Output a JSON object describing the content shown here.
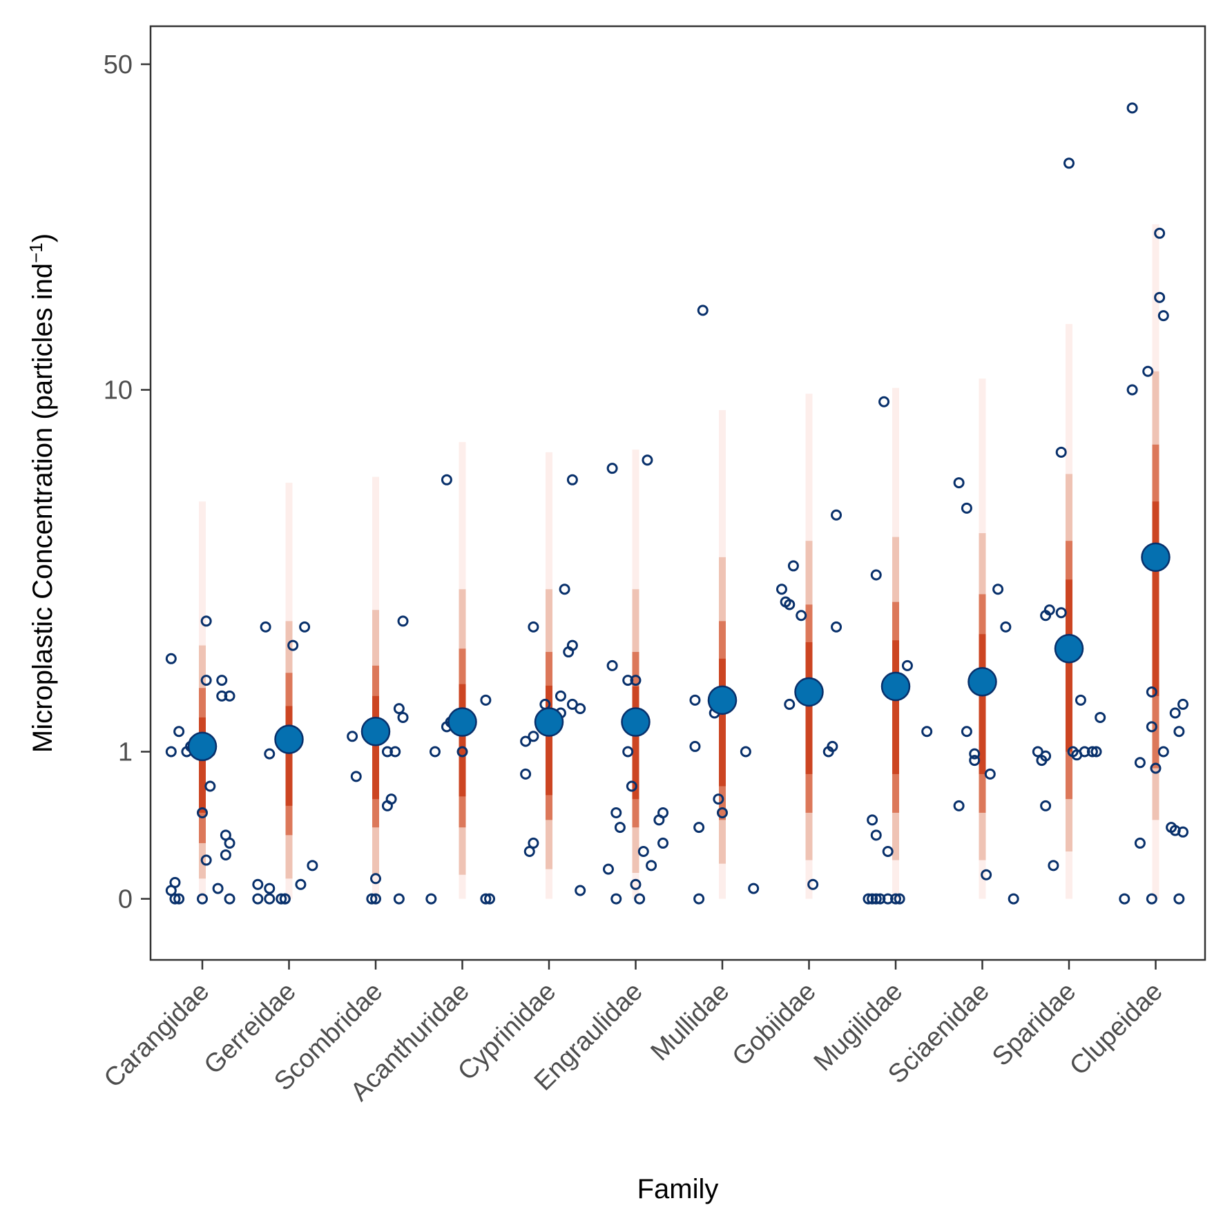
{
  "chart_data": {
    "type": "scatter",
    "xlabel": "Family",
    "ylabel": {
      "prefix": "Microplastic Concentration (particles ind",
      "superscript": "−1",
      "suffix": ")"
    },
    "y_scale": "log1p",
    "ylim": [
      -0.25,
      60
    ],
    "y_ticks": [
      0,
      1,
      10,
      50
    ],
    "y_tick_labels": [
      "0",
      "1",
      "10",
      "50"
    ],
    "grid": false,
    "legend": "none",
    "colors": {
      "point_fill": "#0570b0",
      "point_stroke": "#08306b",
      "raw_point_stroke": "#08306b",
      "interval_outer": "#fdeeeb",
      "interval_95": "#efc3b4",
      "interval_80": "#dc785a",
      "interval_50": "#cc4522"
    },
    "categories": [
      "Carangidae",
      "Gerreidae",
      "Scombridae",
      "Acanthuridae",
      "Cyprinidae",
      "Engraulidae",
      "Mullidae",
      "Gobiidae",
      "Mugilidae",
      "Sciaenidae",
      "Sparidae",
      "Clupeidae"
    ],
    "estimate": [
      1.05,
      1.12,
      1.2,
      1.3,
      1.3,
      1.3,
      1.55,
      1.65,
      1.72,
      1.78,
      2.25,
      4.0
    ],
    "interval_50": [
      [
        0.5,
        1.35
      ],
      [
        0.55,
        1.48
      ],
      [
        0.6,
        1.6
      ],
      [
        0.62,
        1.75
      ],
      [
        0.63,
        1.73
      ],
      [
        0.6,
        1.72
      ],
      [
        0.7,
        2.1
      ],
      [
        0.8,
        2.35
      ],
      [
        0.8,
        2.38
      ],
      [
        0.8,
        2.48
      ],
      [
        1.0,
        3.5
      ],
      [
        1.6,
        5.5
      ]
    ],
    "interval_80": [
      [
        0.3,
        1.7
      ],
      [
        0.35,
        1.9
      ],
      [
        0.4,
        2.0
      ],
      [
        0.4,
        2.25
      ],
      [
        0.45,
        2.2
      ],
      [
        0.4,
        2.2
      ],
      [
        0.45,
        2.7
      ],
      [
        0.5,
        3.0
      ],
      [
        0.5,
        3.05
      ],
      [
        0.5,
        3.2
      ],
      [
        0.6,
        4.4
      ],
      [
        0.85,
        7.5
      ]
    ],
    "interval_95": [
      [
        0.1,
        2.3
      ],
      [
        0.1,
        2.7
      ],
      [
        0.12,
        2.9
      ],
      [
        0.12,
        3.3
      ],
      [
        0.15,
        3.3
      ],
      [
        0.13,
        3.3
      ],
      [
        0.18,
        4.0
      ],
      [
        0.2,
        4.4
      ],
      [
        0.2,
        4.5
      ],
      [
        0.2,
        4.6
      ],
      [
        0.25,
        6.4
      ],
      [
        0.45,
        11.0
      ]
    ],
    "interval_outer": [
      [
        0.0,
        5.5
      ],
      [
        0.0,
        6.1
      ],
      [
        0.0,
        6.3
      ],
      [
        0.0,
        7.6
      ],
      [
        0.0,
        7.2
      ],
      [
        0.0,
        7.3
      ],
      [
        0.0,
        9.0
      ],
      [
        0.0,
        9.8
      ],
      [
        0.0,
        10.1
      ],
      [
        0.0,
        10.6
      ],
      [
        0.0,
        14.0
      ],
      [
        0.0,
        23.0
      ]
    ],
    "raw_points": [
      [
        [
          -0.4,
          2.1
        ],
        [
          -0.4,
          1.0
        ],
        [
          -0.4,
          0.04
        ],
        [
          -0.35,
          0.08
        ],
        [
          -0.35,
          0.0
        ],
        [
          -0.3,
          0.0
        ],
        [
          -0.3,
          1.2
        ],
        [
          -0.2,
          1.0
        ],
        [
          -0.15,
          1.05
        ],
        [
          -0.1,
          1.1
        ],
        [
          0.0,
          0.5
        ],
        [
          0.0,
          0.0
        ],
        [
          0.05,
          0.2
        ],
        [
          0.05,
          2.7
        ],
        [
          0.05,
          1.8
        ],
        [
          0.1,
          1.0
        ],
        [
          0.1,
          0.7
        ],
        [
          0.2,
          0.05
        ],
        [
          0.25,
          1.8
        ],
        [
          0.25,
          1.6
        ],
        [
          0.3,
          0.35
        ],
        [
          0.3,
          0.23
        ],
        [
          0.35,
          0.0
        ],
        [
          0.35,
          1.6
        ],
        [
          0.35,
          0.3
        ]
      ],
      [
        [
          -0.4,
          0.07
        ],
        [
          -0.4,
          0.0
        ],
        [
          -0.3,
          2.6
        ],
        [
          -0.25,
          0.98
        ],
        [
          -0.25,
          0.05
        ],
        [
          -0.25,
          0.0
        ],
        [
          -0.1,
          0.0
        ],
        [
          -0.05,
          0.0
        ],
        [
          -0.05,
          0.0
        ],
        [
          0.05,
          2.3
        ],
        [
          0.15,
          0.07
        ],
        [
          0.2,
          2.6
        ],
        [
          0.3,
          0.17
        ]
      ],
      [
        [
          -0.3,
          1.15
        ],
        [
          -0.25,
          0.78
        ],
        [
          -0.05,
          0.0
        ],
        [
          0.0,
          0.1
        ],
        [
          0.0,
          0.0
        ],
        [
          0.05,
          1.25
        ],
        [
          0.1,
          1.15
        ],
        [
          0.15,
          0.55
        ],
        [
          0.2,
          0.6
        ],
        [
          0.15,
          1.0
        ],
        [
          0.25,
          1.0
        ],
        [
          0.3,
          1.45
        ],
        [
          0.35,
          1.35
        ],
        [
          0.35,
          2.7
        ],
        [
          0.3,
          0.0
        ]
      ],
      [
        [
          -0.35,
          1.0
        ],
        [
          -0.4,
          0.0
        ],
        [
          -0.2,
          1.25
        ],
        [
          -0.2,
          6.2
        ],
        [
          -0.15,
          1.3
        ],
        [
          0.0,
          1.0
        ],
        [
          0.3,
          0.0
        ],
        [
          0.35,
          0.0
        ],
        [
          0.3,
          1.55
        ]
      ],
      [
        [
          -0.3,
          0.8
        ],
        [
          -0.3,
          1.1
        ],
        [
          -0.25,
          0.25
        ],
        [
          -0.2,
          1.15
        ],
        [
          -0.2,
          0.3
        ],
        [
          -0.2,
          2.6
        ],
        [
          -0.05,
          1.5
        ],
        [
          0.1,
          1.25
        ],
        [
          0.15,
          1.6
        ],
        [
          0.15,
          1.4
        ],
        [
          0.2,
          3.3
        ],
        [
          0.25,
          2.2
        ],
        [
          0.3,
          2.3
        ],
        [
          0.3,
          6.2
        ],
        [
          0.3,
          1.5
        ],
        [
          0.4,
          1.45
        ],
        [
          0.4,
          0.04
        ]
      ],
      [
        [
          -0.35,
          0.15
        ],
        [
          -0.3,
          6.6
        ],
        [
          -0.3,
          2.0
        ],
        [
          -0.25,
          0.0
        ],
        [
          -0.25,
          0.5
        ],
        [
          -0.2,
          0.4
        ],
        [
          -0.1,
          1.8
        ],
        [
          -0.1,
          1.0
        ],
        [
          -0.05,
          0.7
        ],
        [
          0.0,
          1.8
        ],
        [
          0.0,
          0.07
        ],
        [
          0.05,
          0.0
        ],
        [
          0.1,
          0.25
        ],
        [
          0.15,
          6.9
        ],
        [
          0.2,
          0.17
        ],
        [
          0.3,
          0.45
        ],
        [
          0.35,
          0.3
        ],
        [
          0.35,
          0.5
        ]
      ],
      [
        [
          -0.35,
          1.55
        ],
        [
          -0.35,
          1.05
        ],
        [
          -0.3,
          0.0
        ],
        [
          -0.3,
          0.4
        ],
        [
          -0.25,
          15.0
        ],
        [
          -0.1,
          1.4
        ],
        [
          -0.05,
          0.6
        ],
        [
          0.0,
          0.5
        ],
        [
          0.3,
          1.0
        ],
        [
          0.4,
          0.05
        ]
      ],
      [
        [
          -0.35,
          3.3
        ],
        [
          -0.3,
          3.05
        ],
        [
          -0.25,
          1.5
        ],
        [
          -0.25,
          3.0
        ],
        [
          -0.2,
          3.8
        ],
        [
          -0.1,
          2.8
        ],
        [
          0.05,
          0.07
        ],
        [
          0.25,
          1.0
        ],
        [
          0.3,
          1.05
        ],
        [
          0.35,
          5.1
        ],
        [
          0.35,
          2.6
        ]
      ],
      [
        [
          -0.35,
          0.0
        ],
        [
          -0.3,
          0.45
        ],
        [
          -0.3,
          0.0
        ],
        [
          -0.25,
          3.6
        ],
        [
          -0.25,
          0.35
        ],
        [
          -0.25,
          0.0
        ],
        [
          -0.2,
          0.0
        ],
        [
          -0.15,
          9.4
        ],
        [
          -0.1,
          0.0
        ],
        [
          -0.1,
          0.25
        ],
        [
          0.0,
          0.0
        ],
        [
          0.05,
          0.0
        ],
        [
          0.15,
          2.0
        ],
        [
          0.4,
          1.2
        ]
      ],
      [
        [
          -0.3,
          0.55
        ],
        [
          -0.3,
          6.1
        ],
        [
          -0.2,
          5.3
        ],
        [
          -0.2,
          1.2
        ],
        [
          -0.1,
          0.98
        ],
        [
          -0.1,
          0.92
        ],
        [
          0.05,
          0.12
        ],
        [
          0.1,
          0.8
        ],
        [
          0.2,
          3.3
        ],
        [
          0.3,
          2.6
        ],
        [
          0.4,
          0.0
        ]
      ],
      [
        [
          -0.4,
          1.0
        ],
        [
          -0.35,
          0.92
        ],
        [
          -0.3,
          0.55
        ],
        [
          -0.3,
          2.8
        ],
        [
          -0.3,
          0.96
        ],
        [
          -0.25,
          2.9
        ],
        [
          -0.2,
          0.17
        ],
        [
          -0.1,
          7.2
        ],
        [
          -0.1,
          2.85
        ],
        [
          0.0,
          31.0
        ],
        [
          0.05,
          1.0
        ],
        [
          0.1,
          0.97
        ],
        [
          0.15,
          1.55
        ],
        [
          0.2,
          1.0
        ],
        [
          0.3,
          1.0
        ],
        [
          0.35,
          1.0
        ],
        [
          0.4,
          1.35
        ]
      ],
      [
        [
          -0.4,
          0.0
        ],
        [
          -0.3,
          40.5
        ],
        [
          -0.3,
          10.0
        ],
        [
          -0.2,
          0.9
        ],
        [
          -0.2,
          0.3
        ],
        [
          -0.1,
          11.0
        ],
        [
          -0.05,
          1.25
        ],
        [
          -0.05,
          0.0
        ],
        [
          -0.05,
          1.65
        ],
        [
          0.0,
          0.85
        ],
        [
          0.05,
          22.0
        ],
        [
          0.05,
          16.0
        ],
        [
          0.1,
          14.6
        ],
        [
          0.1,
          1.0
        ],
        [
          0.2,
          0.4
        ],
        [
          0.25,
          0.38
        ],
        [
          0.25,
          1.4
        ],
        [
          0.3,
          1.2
        ],
        [
          0.3,
          0.0
        ],
        [
          0.35,
          1.5
        ],
        [
          0.35,
          0.37
        ]
      ]
    ]
  }
}
